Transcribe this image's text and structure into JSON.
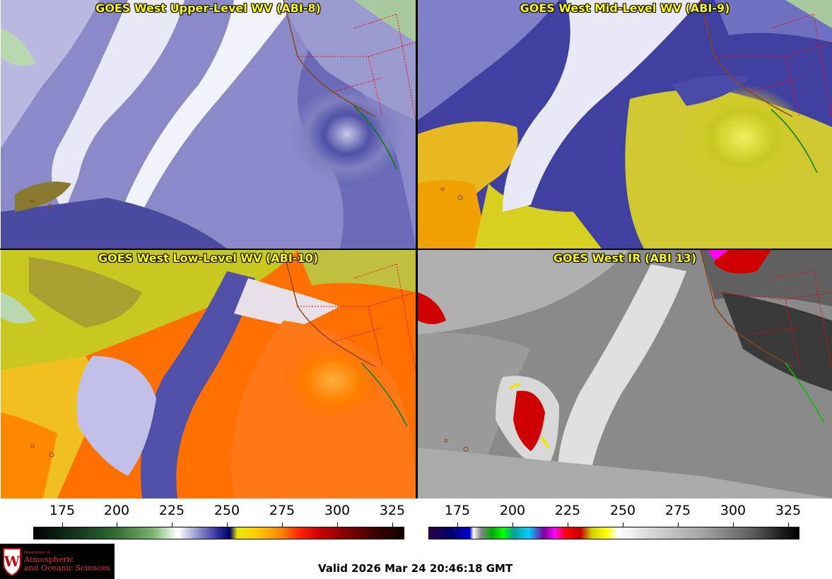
{
  "panels": {
    "upper_level": {
      "title": "GOES West Upper-Level WV (ABI-8)"
    },
    "mid_level": {
      "title": "GOES West Mid-Level WV (ABI-9)"
    },
    "low_level": {
      "title": "GOES West Low-Level WV (ABI-10)"
    },
    "infrared": {
      "title": "GOES West IR (ABI 13)"
    }
  },
  "colorbars": {
    "water_vapor": {
      "ticks": [
        "175",
        "200",
        "225",
        "250",
        "275",
        "300",
        "325"
      ]
    },
    "infrared": {
      "ticks": [
        "175",
        "200",
        "225",
        "250",
        "275",
        "300",
        "325"
      ]
    }
  },
  "logo": {
    "department": "Department of",
    "line1": "Atmospheric",
    "line2": "and Oceanic Sciences",
    "crest_letter": "W"
  },
  "footer": {
    "valid_time": "Valid 2026 Mar 24 20:46:18 GMT"
  },
  "colors": {
    "title_text": "#ffff00",
    "border_state": "#ff0000",
    "coastline": "#8b4513",
    "logo_background": "#000000",
    "logo_text": "#e03030"
  }
}
